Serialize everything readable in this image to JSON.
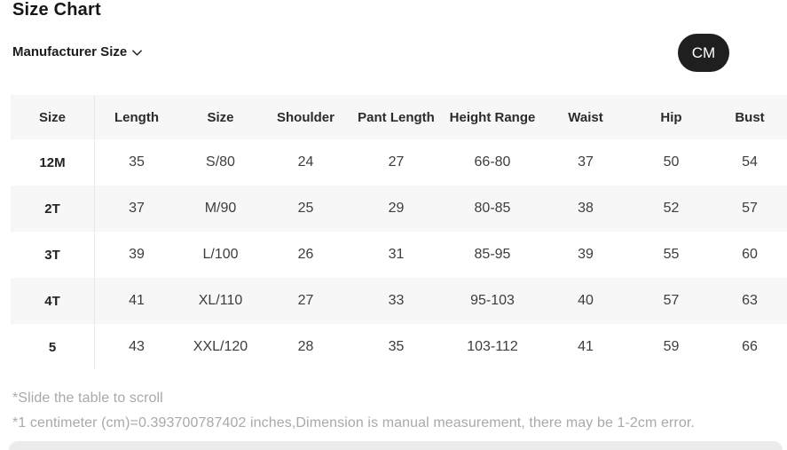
{
  "page": {
    "title": "Size Chart",
    "selector_label": "Manufacturer Size",
    "unit_button": "CM"
  },
  "table": {
    "headers": [
      "Size",
      "Length",
      "Size",
      "Shoulder",
      "Pant Length",
      "Height Range",
      "Waist",
      "Hip",
      "Bust"
    ],
    "rows": [
      [
        "12M",
        "35",
        "S/80",
        "24",
        "27",
        "66-80",
        "37",
        "50",
        "54"
      ],
      [
        "2T",
        "37",
        "M/90",
        "25",
        "29",
        "80-85",
        "38",
        "52",
        "57"
      ],
      [
        "3T",
        "39",
        "L/100",
        "26",
        "31",
        "85-95",
        "39",
        "55",
        "60"
      ],
      [
        "4T",
        "41",
        "XL/110",
        "27",
        "33",
        "95-103",
        "40",
        "57",
        "63"
      ],
      [
        "5",
        "43",
        "XXL/120",
        "28",
        "35",
        "103-112",
        "41",
        "59",
        "66"
      ]
    ]
  },
  "notes": {
    "scroll_hint": "*Slide the table to scroll",
    "conversion": "*1 centimeter (cm)=0.393700787402 inches,Dimension is manual measurement, there may be 1-2cm error."
  },
  "colors": {
    "unit_pill_bg": "#1f1f1f",
    "row_alt_bg": "#f7f7f8",
    "note_text": "#a9a9a9",
    "divider": "#e9e9e9"
  }
}
